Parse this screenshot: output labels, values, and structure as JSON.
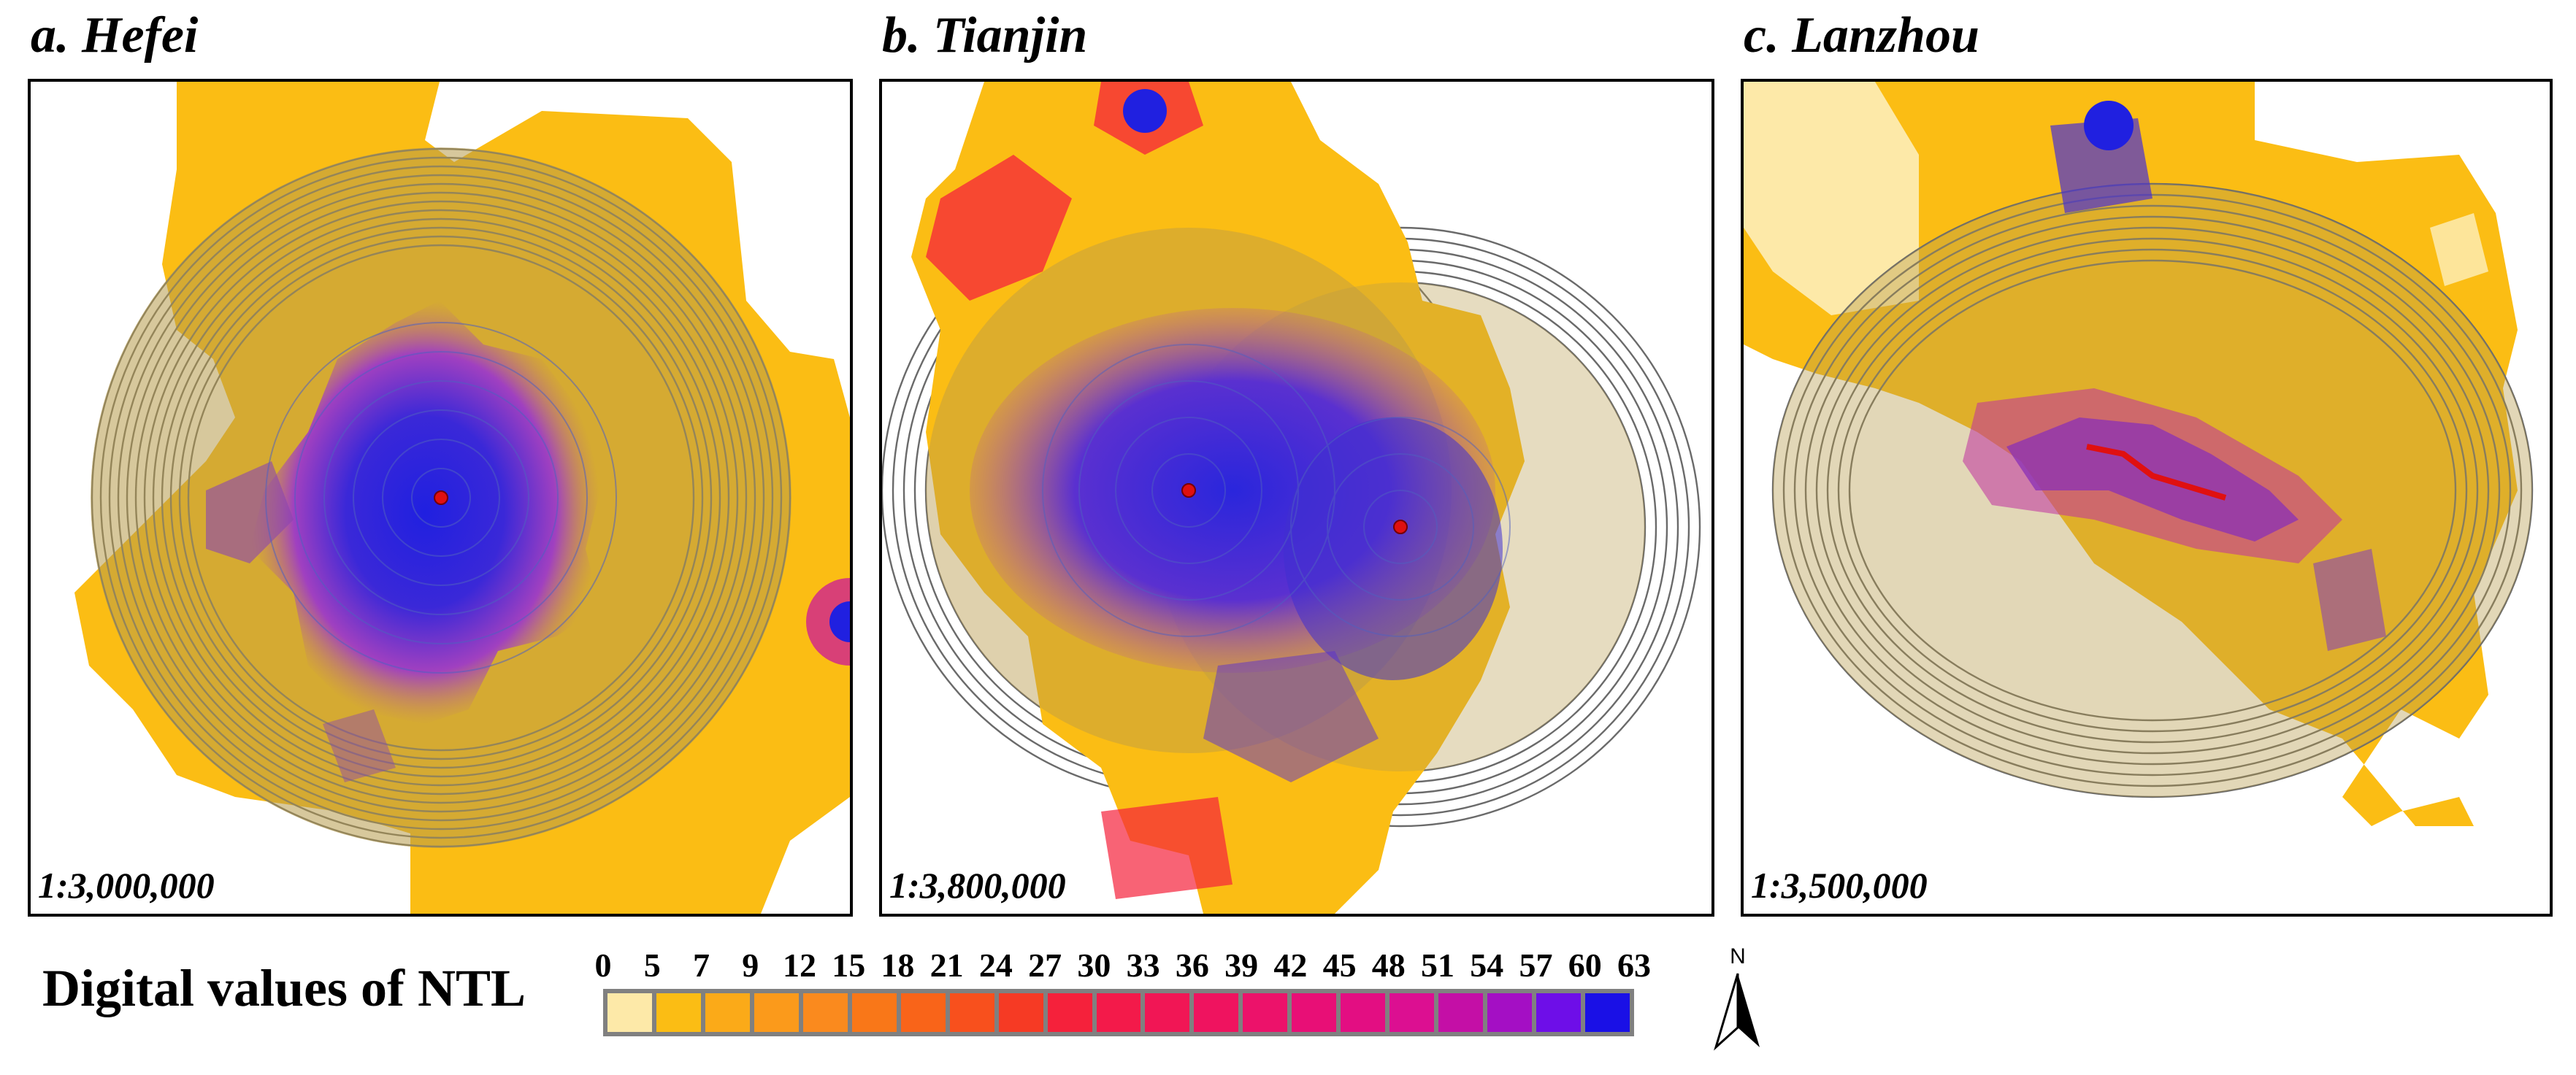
{
  "panels": [
    {
      "letter": "a.",
      "city": "Hefei",
      "scale": "1:3,000,000"
    },
    {
      "letter": "b.",
      "city": "Tianjin",
      "scale": "1:3,800,000"
    },
    {
      "letter": "c.",
      "city": "Lanzhou",
      "scale": "1:3,500,000"
    }
  ],
  "legend": {
    "title": "Digital values of NTL",
    "ticks": [
      "0",
      "5",
      "7",
      "9",
      "12",
      "15",
      "18",
      "21",
      "24",
      "27",
      "30",
      "33",
      "36",
      "39",
      "42",
      "45",
      "48",
      "51",
      "54",
      "57",
      "60",
      "63"
    ],
    "colors": [
      "#fde9a8",
      "#fbbd14",
      "#fbaa18",
      "#fb9a1b",
      "#fa8a1e",
      "#f97718",
      "#f96419",
      "#f8501d",
      "#f63a24",
      "#f5213b",
      "#f31a4a",
      "#f11655",
      "#ef135f",
      "#ec126a",
      "#e80f76",
      "#e30e82",
      "#dc0f91",
      "#c40fa6",
      "#a40fc4",
      "#6e0ee8",
      "#1a10e6"
    ]
  },
  "north_arrow": {
    "label": "N"
  }
}
